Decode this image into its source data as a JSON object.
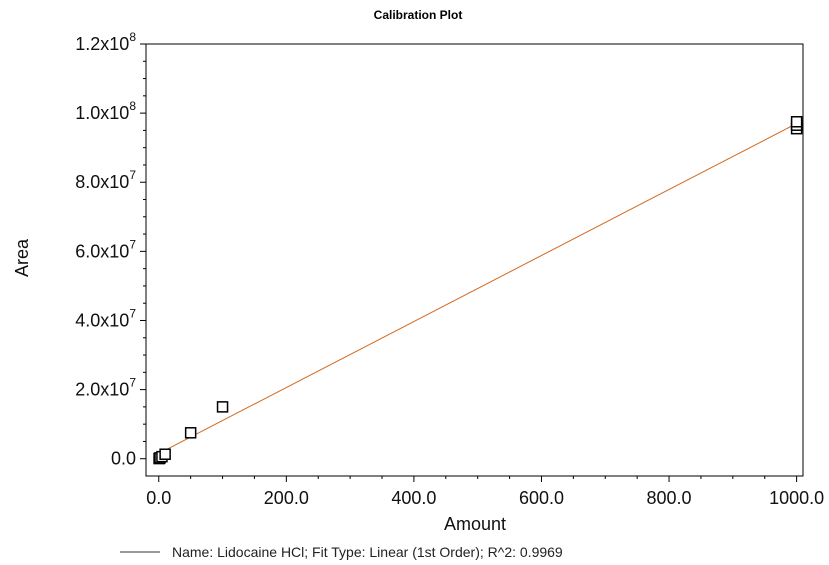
{
  "chart_data": {
    "type": "scatter",
    "title": "Calibration Plot",
    "xlabel": "Amount",
    "ylabel": "Area",
    "xlim": [
      -20,
      1010
    ],
    "ylim": [
      -5000000,
      120000000
    ],
    "x_ticks": [
      {
        "value": 0,
        "label": "0.0"
      },
      {
        "value": 200,
        "label": "200.0"
      },
      {
        "value": 400,
        "label": "400.0"
      },
      {
        "value": 600,
        "label": "600.0"
      },
      {
        "value": 800,
        "label": "800.0"
      },
      {
        "value": 1000,
        "label": "1000.0"
      }
    ],
    "y_ticks": [
      {
        "value": 0,
        "mantissa": "0.0",
        "exponent": ""
      },
      {
        "value": 20000000,
        "mantissa": "2.0x10",
        "exponent": "7"
      },
      {
        "value": 40000000,
        "mantissa": "4.0x10",
        "exponent": "7"
      },
      {
        "value": 60000000,
        "mantissa": "6.0x10",
        "exponent": "7"
      },
      {
        "value": 80000000,
        "mantissa": "8.0x10",
        "exponent": "7"
      },
      {
        "value": 100000000,
        "mantissa": "1.0x10",
        "exponent": "8"
      },
      {
        "value": 120000000,
        "mantissa": "1.2x10",
        "exponent": "8"
      }
    ],
    "points": [
      {
        "x": 0.5,
        "y": 50000
      },
      {
        "x": 1,
        "y": 100000
      },
      {
        "x": 2,
        "y": 250000
      },
      {
        "x": 5,
        "y": 600000
      },
      {
        "x": 10,
        "y": 1300000
      },
      {
        "x": 50,
        "y": 7500000
      },
      {
        "x": 100,
        "y": 15000000
      },
      {
        "x": 1000,
        "y": 95500000
      },
      {
        "x": 1000,
        "y": 96500000
      },
      {
        "x": 1000,
        "y": 97500000
      }
    ],
    "fit_line": {
      "x": [
        0,
        1000
      ],
      "y": [
        1500000,
        97000000
      ],
      "color": "#d2691e"
    },
    "marker_color": "#000000",
    "grid": false,
    "legend": {
      "text": "Name: Lidocaine HCl;   Fit Type: Linear (1st Order);   R^2: 0.9969",
      "position": "bottom"
    }
  }
}
